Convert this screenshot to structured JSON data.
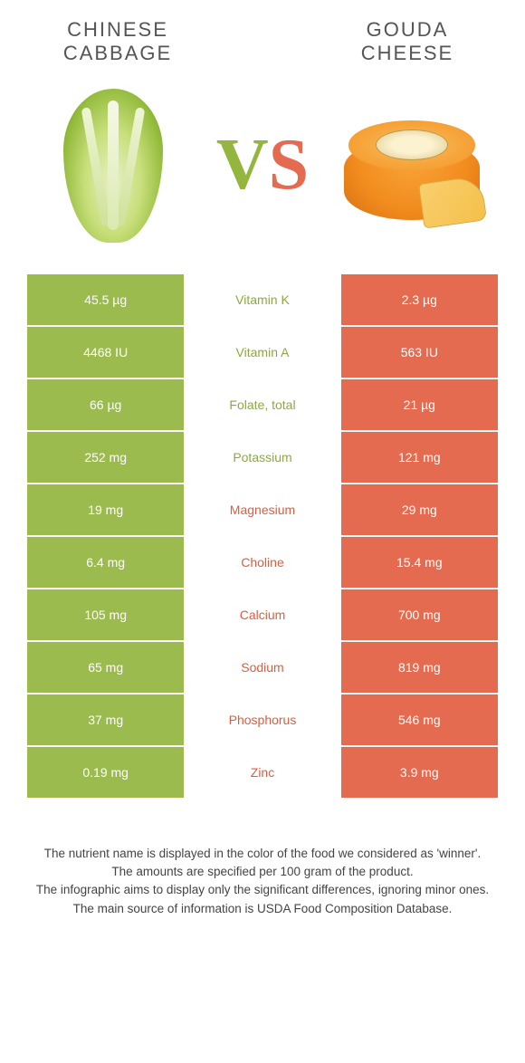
{
  "food_left": {
    "title_line1": "Chinese",
    "title_line2": "cabbage"
  },
  "food_right": {
    "title_line1": "Gouda",
    "title_line2": "cheese"
  },
  "colors": {
    "green": "#9bbb4f",
    "green_text": "#8aab3c",
    "orange": "#e46b4f",
    "orange_text": "#e05c3d"
  },
  "rows": [
    {
      "left": "45.5 µg",
      "label": "Vitamin K",
      "right": "2.3 µg",
      "winner": "green"
    },
    {
      "left": "4468 IU",
      "label": "Vitamin A",
      "right": "563 IU",
      "winner": "green"
    },
    {
      "left": "66 µg",
      "label": "Folate, total",
      "right": "21 µg",
      "winner": "green"
    },
    {
      "left": "252 mg",
      "label": "Potassium",
      "right": "121 mg",
      "winner": "green"
    },
    {
      "left": "19 mg",
      "label": "Magnesium",
      "right": "29 mg",
      "winner": "orange"
    },
    {
      "left": "6.4 mg",
      "label": "Choline",
      "right": "15.4 mg",
      "winner": "orange"
    },
    {
      "left": "105 mg",
      "label": "Calcium",
      "right": "700 mg",
      "winner": "orange"
    },
    {
      "left": "65 mg",
      "label": "Sodium",
      "right": "819 mg",
      "winner": "orange"
    },
    {
      "left": "37 mg",
      "label": "Phosphorus",
      "right": "546 mg",
      "winner": "orange"
    },
    {
      "left": "0.19 mg",
      "label": "Zinc",
      "right": "3.9 mg",
      "winner": "orange"
    }
  ],
  "footer": {
    "line1": "The nutrient name is displayed in the color of the food we considered as 'winner'.",
    "line2": "The amounts are specified per 100 gram of the product.",
    "line3": "The infographic aims to display only the significant differences, ignoring minor ones.",
    "line4": "The main source of information is USDA Food Composition Database."
  }
}
